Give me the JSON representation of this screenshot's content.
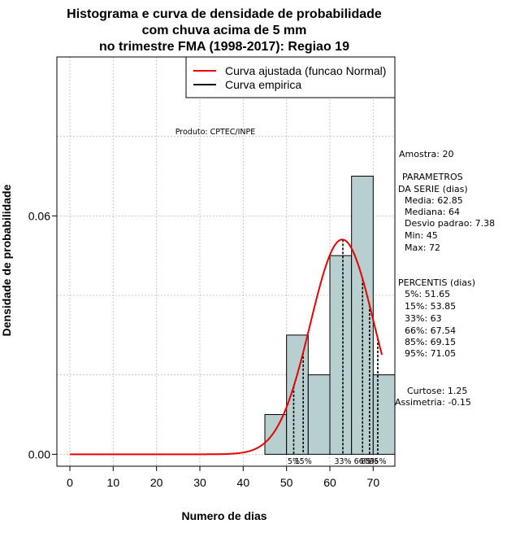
{
  "chart_data": {
    "type": "histogram",
    "title_lines": [
      "Histograma e curva de densidade de probabilidade",
      "com chuva acima de 5 mm",
      "no trimestre FMA (1998-2017): Regiao 19"
    ],
    "xlabel": "Numero de dias",
    "ylabel": "Densidade de probabilidade",
    "xlim": [
      -3,
      75
    ],
    "ylim": [
      -0.003,
      0.1
    ],
    "x_ticks": [
      0,
      10,
      20,
      30,
      40,
      50,
      60,
      70
    ],
    "y_ticks": [
      0.0,
      0.06
    ],
    "y_tick_labels": [
      "0.00",
      "0.06"
    ],
    "grid_x": [
      0,
      10,
      20,
      30,
      40,
      50,
      60,
      70
    ],
    "grid_y": [
      0.0,
      0.02,
      0.04,
      0.06,
      0.08,
      0.1
    ],
    "bars": [
      {
        "x0": 45,
        "x1": 50,
        "density": 0.01
      },
      {
        "x0": 50,
        "x1": 55,
        "density": 0.03
      },
      {
        "x0": 55,
        "x1": 60,
        "density": 0.02
      },
      {
        "x0": 60,
        "x1": 65,
        "density": 0.05
      },
      {
        "x0": 65,
        "x1": 70,
        "density": 0.07
      },
      {
        "x0": 70,
        "x1": 75,
        "density": 0.02
      }
    ],
    "bar_color": "#b7cfcf",
    "normal_curve": {
      "name": "Curva ajustada (funcao Normal)",
      "mean": 62.85,
      "sd": 7.38,
      "x_from": 0,
      "x_to": 72,
      "color": "#ee0000"
    },
    "empirical_curve": {
      "name": "Curva empirica",
      "color": "#000000"
    },
    "percentiles": [
      {
        "label": "5%",
        "value": 51.65
      },
      {
        "label": "15%",
        "value": 53.85
      },
      {
        "label": "33%",
        "value": 63
      },
      {
        "label": "66%",
        "value": 67.54
      },
      {
        "label": "85%",
        "value": 69.15
      },
      {
        "label": "95%",
        "value": 71.05
      }
    ],
    "percentile_bottom_labels": [
      {
        "text": "5%",
        "at": 51.65
      },
      {
        "text": "15%",
        "at": 53.85
      },
      {
        "text": "33%",
        "at": 63
      },
      {
        "text": "66%",
        "at": 67.54
      },
      {
        "text": "85%",
        "at": 69.15
      },
      {
        "text": "95%",
        "at": 71.05
      }
    ],
    "legend_position": "top-right",
    "product_label": "Produto: CPTEC/INPE"
  },
  "stats": {
    "amostra": "Amostra: 20",
    "param_title_1": "PARAMETROS",
    "param_title_2": "DA SERIE (dias)",
    "media": "Media: 62.85",
    "mediana": "Mediana: 64",
    "desvio": "Desvio padrao: 7.38",
    "min": "Min: 45",
    "max": "Max: 72",
    "percentis_title": "PERCENTIS (dias)",
    "p5": "5%: 51.65",
    "p15": "15%: 53.85",
    "p33": "33%: 63",
    "p66": "66%: 67.54",
    "p85": "85%: 69.15",
    "p95": "95%: 71.05",
    "curtose": "Curtose: 1.25",
    "assimetria": "Assimetria: -0.15"
  }
}
